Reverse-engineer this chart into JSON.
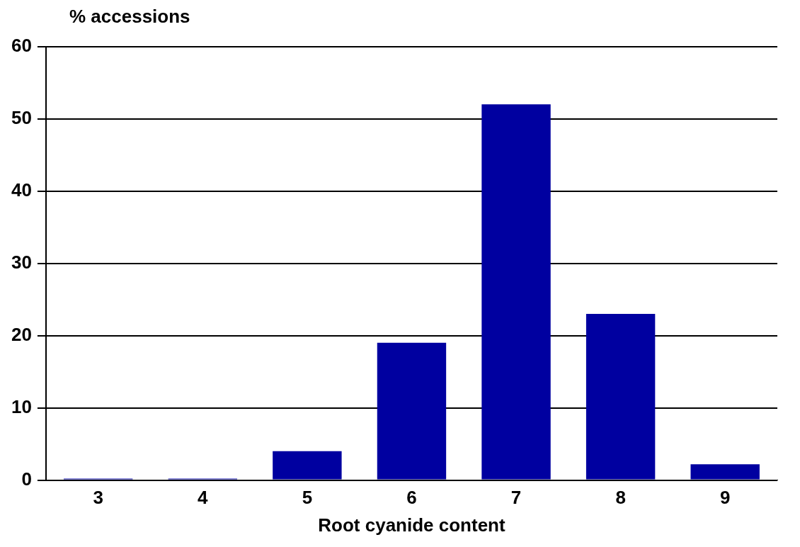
{
  "chart_data": {
    "type": "bar",
    "ylabel": "% accessions",
    "xlabel": "Root cyanide content",
    "categories": [
      "3",
      "4",
      "5",
      "6",
      "7",
      "8",
      "9"
    ],
    "values": [
      0.2,
      0.2,
      4,
      19,
      52,
      23,
      2.2
    ],
    "color": "#0000a0",
    "ylim": [
      0,
      60
    ],
    "yticks": [
      0,
      10,
      20,
      30,
      40,
      50,
      60
    ],
    "grid": "y",
    "legend": false
  }
}
